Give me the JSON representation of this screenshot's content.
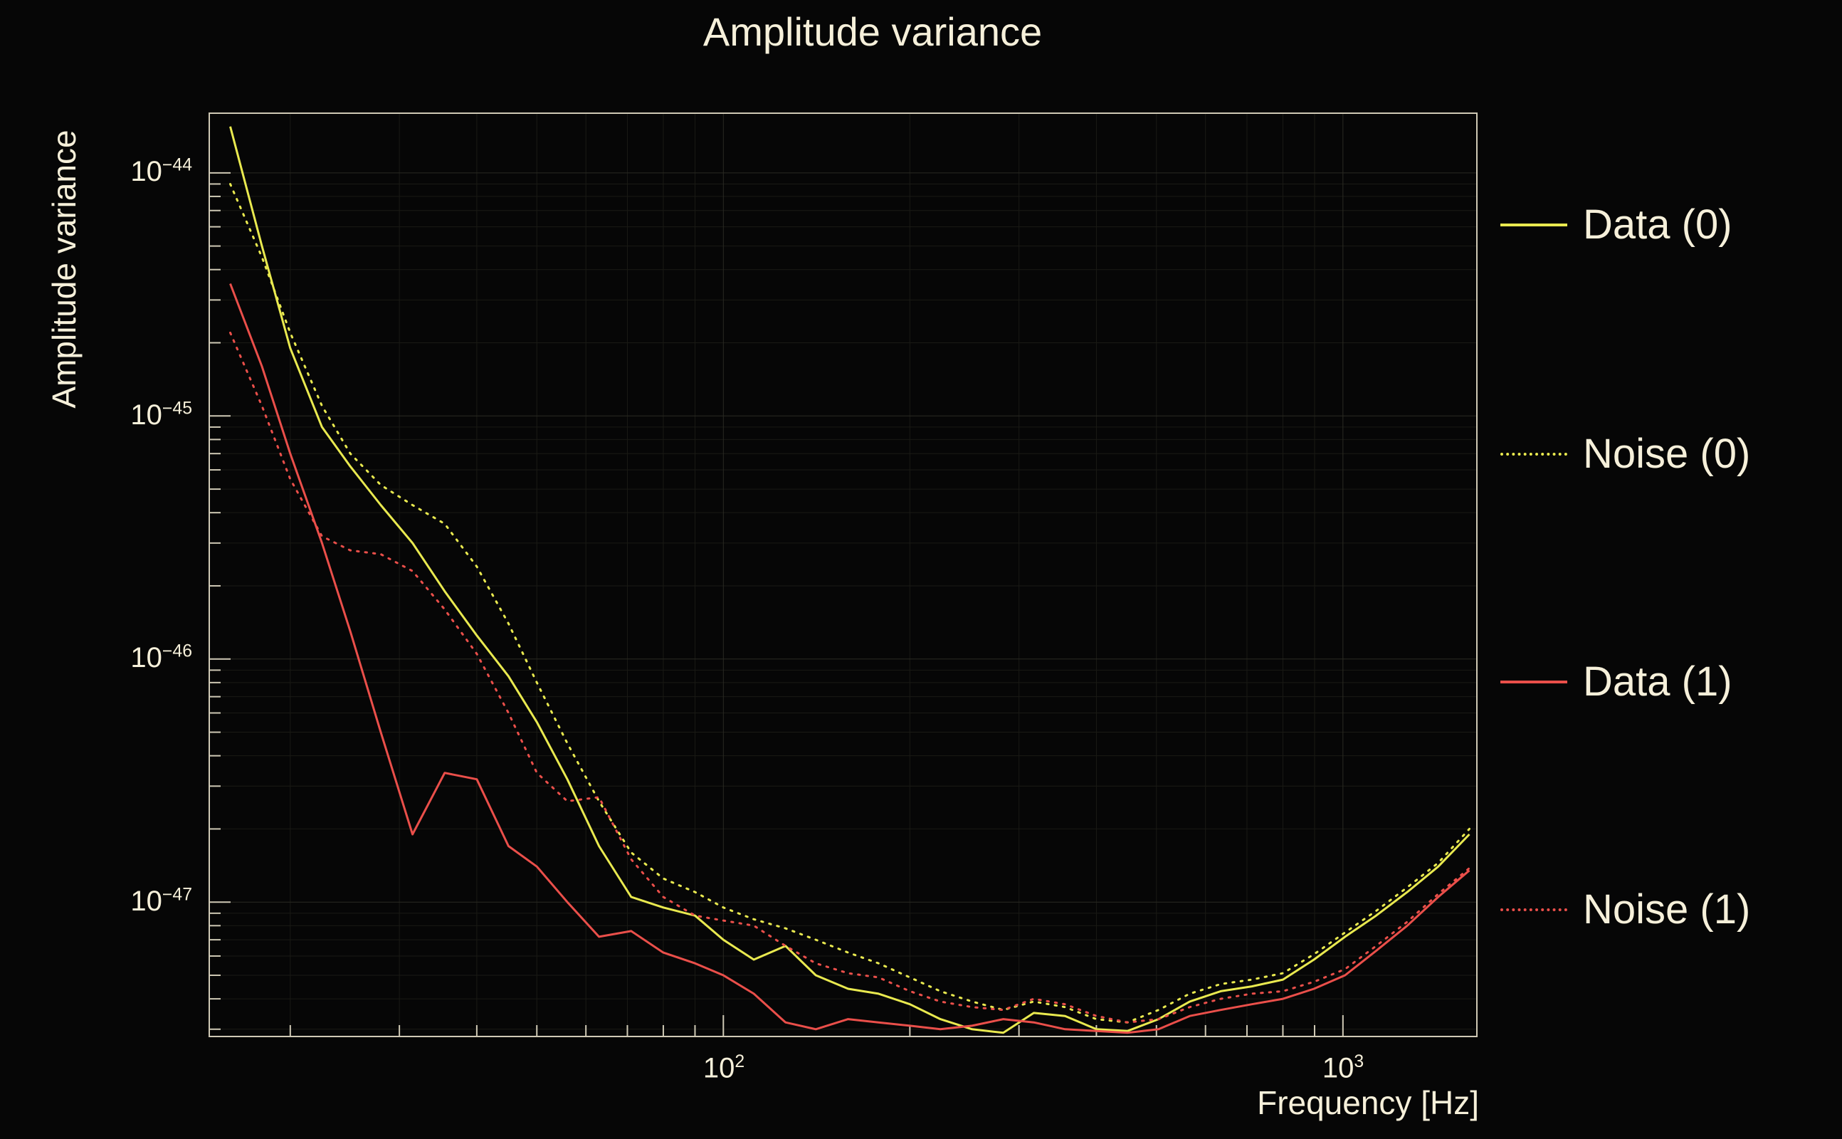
{
  "title": "Amplitude variance",
  "colors": {
    "background": "#060606",
    "text": "#f6f0da",
    "frame": "#cfc9b5",
    "grid_major": "#2a2a23",
    "grid_minor": "#1a1a15",
    "yellow": "#e9e94f",
    "red": "#ea4f4a"
  },
  "axes": {
    "x": {
      "title": "Frequency [Hz]",
      "ticks": [
        {
          "base": "10",
          "exp": "2",
          "value": 100
        },
        {
          "base": "10",
          "exp": "3",
          "value": 1000
        }
      ]
    },
    "y": {
      "title": "Amplitude variance",
      "ticks": [
        {
          "base": "10",
          "exp": "−44",
          "value": 1e-44
        },
        {
          "base": "10",
          "exp": "−45",
          "value": 1e-45
        },
        {
          "base": "10",
          "exp": "−46",
          "value": 1e-46
        },
        {
          "base": "10",
          "exp": "−47",
          "value": 1e-47
        }
      ]
    }
  },
  "legend": [
    {
      "label": "Data (0)",
      "color": "#e9e94f",
      "style": "solid"
    },
    {
      "label": "Noise (0)",
      "color": "#e9e94f",
      "style": "dotted"
    },
    {
      "label": "Data (1)",
      "color": "#ea4f4a",
      "style": "solid"
    },
    {
      "label": "Noise (1)",
      "color": "#ea4f4a",
      "style": "dotted"
    }
  ],
  "chart_data": {
    "type": "line",
    "title": "Amplitude variance",
    "xlabel": "Frequency [Hz]",
    "ylabel": "Amplitude variance",
    "xscale": "log",
    "yscale": "log",
    "grid": true,
    "legend_position": "right",
    "xlim": [
      14.8,
      1645
    ],
    "ylim": [
      2.8e-48,
      1.76e-44
    ],
    "xticks": [
      100,
      1000
    ],
    "yticks": [
      1e-44,
      1e-45,
      1e-46,
      1e-47
    ],
    "x": [
      16,
      18,
      20,
      22.5,
      25,
      28,
      31.5,
      35.5,
      40,
      45,
      50,
      56,
      63,
      71,
      80,
      90,
      100,
      112,
      126,
      141,
      159,
      178,
      200,
      224,
      252,
      283,
      317,
      356,
      400,
      449,
      504,
      566,
      635,
      713,
      800,
      898,
      1008,
      1131,
      1270,
      1425,
      1600
    ],
    "series": [
      {
        "name": "Data (0)",
        "color": "#e9e94f",
        "style": "solid",
        "values": [
          1.55e-44,
          5e-45,
          1.9e-45,
          9e-46,
          6.2e-46,
          4.3e-46,
          3e-46,
          1.9e-46,
          1.25e-46,
          8.5e-47,
          5.5e-47,
          3.2e-47,
          1.7e-47,
          1.05e-47,
          9.5e-48,
          8.8e-48,
          7e-48,
          5.8e-48,
          6.6e-48,
          5e-48,
          4.4e-48,
          4.2e-48,
          3.8e-48,
          3.3e-48,
          3e-48,
          2.9e-48,
          3.5e-48,
          3.4e-48,
          3e-48,
          2.95e-48,
          3.3e-48,
          3.9e-48,
          4.3e-48,
          4.5e-48,
          4.8e-48,
          5.8e-48,
          7.2e-48,
          8.8e-48,
          1.1e-47,
          1.4e-47,
          1.9e-47
        ]
      },
      {
        "name": "Noise (0)",
        "color": "#e9e94f",
        "style": "dotted",
        "values": [
          9e-45,
          4.5e-45,
          2.2e-45,
          1.1e-45,
          7e-46,
          5.2e-46,
          4.3e-46,
          3.6e-46,
          2.4e-46,
          1.4e-46,
          8e-47,
          4.5e-47,
          2.6e-47,
          1.6e-47,
          1.25e-47,
          1.1e-47,
          9.5e-48,
          8.5e-48,
          7.8e-48,
          7e-48,
          6.2e-48,
          5.6e-48,
          4.9e-48,
          4.3e-48,
          3.9e-48,
          3.6e-48,
          3.9e-48,
          3.7e-48,
          3.3e-48,
          3.2e-48,
          3.6e-48,
          4.2e-48,
          4.6e-48,
          4.8e-48,
          5.1e-48,
          6.1e-48,
          7.5e-48,
          9.2e-48,
          1.15e-47,
          1.45e-47,
          2e-47
        ]
      },
      {
        "name": "Data (1)",
        "color": "#ea4f4a",
        "style": "solid",
        "values": [
          3.5e-45,
          1.6e-45,
          7e-46,
          3e-46,
          1.3e-46,
          5e-47,
          1.9e-47,
          3.4e-47,
          3.2e-47,
          1.7e-47,
          1.4e-47,
          1e-47,
          7.2e-48,
          7.6e-48,
          6.2e-48,
          5.6e-48,
          5e-48,
          4.2e-48,
          3.2e-48,
          3e-48,
          3.3e-48,
          3.2e-48,
          3.1e-48,
          3e-48,
          3.1e-48,
          3.3e-48,
          3.2e-48,
          3e-48,
          2.95e-48,
          2.9e-48,
          3e-48,
          3.4e-48,
          3.6e-48,
          3.8e-48,
          4e-48,
          4.4e-48,
          5e-48,
          6.3e-48,
          8e-48,
          1.05e-47,
          1.35e-47
        ]
      },
      {
        "name": "Noise (1)",
        "color": "#ea4f4a",
        "style": "dotted",
        "values": [
          2.2e-45,
          1.1e-45,
          5.5e-46,
          3.2e-46,
          2.8e-46,
          2.7e-46,
          2.3e-46,
          1.6e-46,
          1.05e-46,
          6e-47,
          3.4e-47,
          2.6e-47,
          2.7e-47,
          1.5e-47,
          1.05e-47,
          8.8e-48,
          8.4e-48,
          8e-48,
          6.6e-48,
          5.6e-48,
          5.1e-48,
          4.9e-48,
          4.3e-48,
          3.9e-48,
          3.7e-48,
          3.6e-48,
          4e-48,
          3.8e-48,
          3.4e-48,
          3.2e-48,
          3.3e-48,
          3.7e-48,
          4e-48,
          4.2e-48,
          4.3e-48,
          4.7e-48,
          5.3e-48,
          6.6e-48,
          8.3e-48,
          1.08e-47,
          1.38e-47
        ]
      }
    ]
  }
}
